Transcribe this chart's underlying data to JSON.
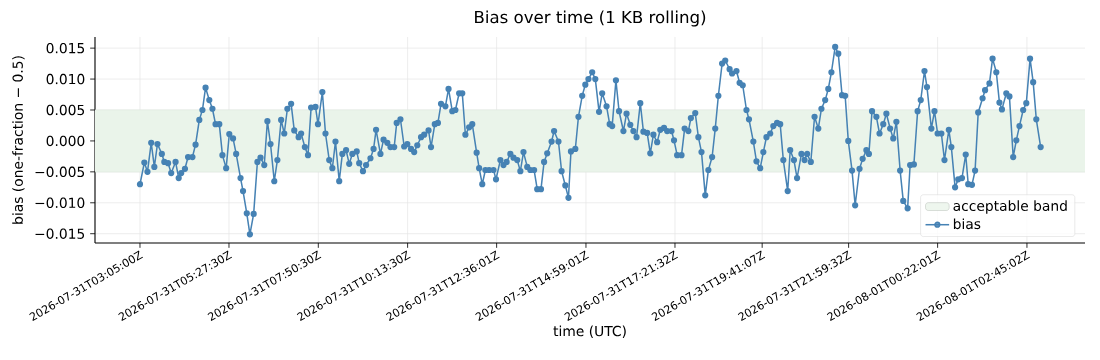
{
  "chart_data": {
    "type": "line",
    "title": "Bias over time (1 KB rolling)",
    "xlabel": "time (UTC)",
    "ylabel": "bias (one-fraction − 0.5)",
    "x": [
      "2026-07-31T03:05",
      "2026-07-31T03:12",
      "2026-07-31T03:17",
      "2026-07-31T03:23",
      "2026-07-31T03:28",
      "2026-07-31T03:33",
      "2026-07-31T03:40",
      "2026-07-31T03:44",
      "2026-07-31T03:50",
      "2026-07-31T03:55",
      "2026-07-31T04:02",
      "2026-07-31T04:07",
      "2026-07-31T04:11",
      "2026-07-31T04:17",
      "2026-07-31T04:22",
      "2026-07-31T04:29",
      "2026-07-31T04:34",
      "2026-07-31T04:40",
      "2026-07-31T04:45",
      "2026-07-31T04:50",
      "2026-07-31T04:56",
      "2026-07-31T05:01",
      "2026-07-31T05:06",
      "2026-07-31T05:12",
      "2026-07-31T05:17",
      "2026-07-31T05:23",
      "2026-07-31T05:28",
      "2026-07-31T05:34",
      "2026-07-31T05:39",
      "2026-07-31T05:46",
      "2026-07-31T05:50",
      "2026-07-31T05:56",
      "2026-07-31T06:01",
      "2026-07-31T06:07",
      "2026-07-31T06:13",
      "2026-07-31T06:18",
      "2026-07-31T06:24",
      "2026-07-31T06:29",
      "2026-07-31T06:34",
      "2026-07-31T06:40",
      "2026-07-31T06:45",
      "2026-07-31T06:51",
      "2026-07-31T06:56",
      "2026-07-31T07:01",
      "2026-07-31T07:07",
      "2026-07-31T07:12",
      "2026-07-31T07:19",
      "2026-07-31T07:23",
      "2026-07-31T07:29",
      "2026-07-31T07:34",
      "2026-07-31T07:39",
      "2026-07-31T07:46",
      "2026-07-31T07:50",
      "2026-07-31T07:57",
      "2026-07-31T08:02",
      "2026-07-31T08:08",
      "2026-07-31T08:13",
      "2026-07-31T08:18",
      "2026-07-31T08:24",
      "2026-07-31T08:29",
      "2026-07-31T08:35",
      "2026-07-31T08:40",
      "2026-07-31T08:45",
      "2026-07-31T08:52",
      "2026-07-31T08:56",
      "2026-07-31T09:02",
      "2026-07-31T09:07",
      "2026-07-31T09:14",
      "2026-07-31T09:19",
      "2026-07-31T09:23",
      "2026-07-31T09:30",
      "2026-07-31T09:35",
      "2026-07-31T09:41",
      "2026-07-31T09:46",
      "2026-07-31T09:52",
      "2026-07-31T09:56",
      "2026-07-31T10:02",
      "2026-07-31T10:08",
      "2026-07-31T10:13",
      "2026-07-31T10:19",
      "2026-07-31T10:24",
      "2026-07-31T10:29",
      "2026-07-31T10:35",
      "2026-07-31T10:40",
      "2026-07-31T10:47",
      "2026-07-31T10:51",
      "2026-07-31T10:57",
      "2026-07-31T11:02",
      "2026-07-31T11:07",
      "2026-07-31T11:14",
      "2026-07-31T11:19",
      "2026-07-31T11:25",
      "2026-07-31T11:30",
      "2026-07-31T11:36",
      "2026-07-31T11:41",
      "2026-07-31T11:46",
      "2026-07-31T11:52",
      "2026-07-31T11:57",
      "2026-07-31T12:04",
      "2026-07-31T12:08",
      "2026-07-31T12:13",
      "2026-07-31T12:18",
      "2026-07-31T12:24",
      "2026-07-31T12:31",
      "2026-07-31T12:35",
      "2026-07-31T12:42",
      "2026-07-31T12:47",
      "2026-07-31T12:52",
      "2026-07-31T12:58",
      "2026-07-31T13:03",
      "2026-07-31T13:09",
      "2026-07-31T13:14",
      "2026-07-31T13:19",
      "2026-07-31T13:25",
      "2026-07-31T13:30",
      "2026-07-31T13:36",
      "2026-07-31T13:41",
      "2026-07-31T13:47",
      "2026-07-31T13:52",
      "2026-07-31T13:57",
      "2026-07-31T14:04",
      "2026-07-31T14:08",
      "2026-07-31T14:15",
      "2026-07-31T14:20",
      "2026-07-31T14:26",
      "2026-07-31T14:31",
      "2026-07-31T14:35",
      "2026-07-31T14:42",
      "2026-07-31T14:47",
      "2026-07-31T14:53",
      "2026-07-31T14:58",
      "2026-07-31T15:03",
      "2026-07-31T15:09",
      "2026-07-31T15:14",
      "2026-07-31T15:20",
      "2026-07-31T15:25",
      "2026-07-31T15:32",
      "2026-07-31T15:37",
      "2026-07-31T15:41",
      "2026-07-31T15:47",
      "2026-07-31T15:52",
      "2026-07-31T15:59",
      "2026-07-31T16:04",
      "2026-07-31T16:10",
      "2026-07-31T16:15",
      "2026-07-31T16:20",
      "2026-07-31T16:26",
      "2026-07-31T16:31",
      "2026-07-31T16:37",
      "2026-07-31T16:42",
      "2026-07-31T16:47",
      "2026-07-31T16:53",
      "2026-07-31T16:58",
      "2026-07-31T17:04",
      "2026-07-31T17:09",
      "2026-07-31T17:16",
      "2026-07-31T17:20",
      "2026-07-31T17:25",
      "2026-07-31T17:32",
      "2026-07-31T17:37",
      "2026-07-31T17:43",
      "2026-07-31T17:47",
      "2026-07-31T17:54",
      "2026-07-31T17:59",
      "2026-07-31T18:04",
      "2026-07-31T18:10",
      "2026-07-31T18:15",
      "2026-07-31T18:21",
      "2026-07-31T18:26",
      "2026-07-31T18:31",
      "2026-07-31T18:37",
      "2026-07-31T18:42",
      "2026-07-31T18:49",
      "2026-07-31T18:53",
      "2026-07-31T19:00",
      "2026-07-31T19:05",
      "2026-07-31T19:10",
      "2026-07-31T19:16",
      "2026-07-31T19:20",
      "2026-07-31T19:27",
      "2026-07-31T19:32",
      "2026-07-31T19:38",
      "2026-07-31T19:43",
      "2026-07-31T19:48",
      "2026-07-31T19:54",
      "2026-07-31T19:59",
      "2026-07-31T20:05",
      "2026-07-31T20:10",
      "2026-07-31T20:15",
      "2026-07-31T20:22",
      "2026-07-31T20:26",
      "2026-07-31T20:32",
      "2026-07-31T20:37",
      "2026-07-31T20:44",
      "2026-07-31T20:49",
      "2026-07-31T20:53",
      "2026-07-31T20:59",
      "2026-07-31T21:05",
      "2026-07-31T21:11",
      "2026-07-31T21:16",
      "2026-07-31T21:22",
      "2026-07-31T21:27",
      "2026-07-31T21:32",
      "2026-07-31T21:38",
      "2026-07-31T21:43",
      "2026-07-31T21:49",
      "2026-07-31T21:54",
      "2026-07-31T21:59",
      "2026-07-31T22:05",
      "2026-07-31T22:10",
      "2026-07-31T22:17",
      "2026-07-31T22:22",
      "2026-07-31T22:28",
      "2026-07-31T22:32",
      "2026-07-31T22:37",
      "2026-07-31T22:44",
      "2026-07-31T22:49",
      "2026-07-31T22:55",
      "2026-07-31T23:00",
      "2026-07-31T23:06",
      "2026-07-31T23:11",
      "2026-07-31T23:16",
      "2026-07-31T23:22",
      "2026-07-31T23:27",
      "2026-07-31T23:34",
      "2026-07-31T23:38",
      "2026-07-31T23:44",
      "2026-07-31T23:50",
      "2026-07-31T23:55",
      "2026-08-01T00:01",
      "2026-08-01T00:05",
      "2026-08-01T00:12",
      "2026-08-01T00:17",
      "2026-08-01T00:22",
      "2026-08-01T00:28",
      "2026-08-01T00:33",
      "2026-08-01T00:40",
      "2026-08-01T00:44",
      "2026-08-01T00:50",
      "2026-08-01T00:55",
      "2026-08-01T01:01",
      "2026-08-01T01:07",
      "2026-08-01T01:11",
      "2026-08-01T01:17",
      "2026-08-01T01:22",
      "2026-08-01T01:27",
      "2026-08-01T01:34",
      "2026-08-01T01:38",
      "2026-08-01T01:45",
      "2026-08-01T01:50",
      "2026-08-01T01:56",
      "2026-08-01T02:01",
      "2026-08-01T02:05",
      "2026-08-01T02:12",
      "2026-08-01T02:17",
      "2026-08-01T02:23",
      "2026-08-01T02:28",
      "2026-08-01T02:33",
      "2026-08-01T02:39",
      "2026-08-01T02:44",
      "2026-08-01T02:50",
      "2026-08-01T02:55",
      "2026-08-01T03:00",
      "2026-08-01T03:07"
    ],
    "series": [
      {
        "name": "bias",
        "color": "#4682b4",
        "values": [
          -0.007,
          -0.0035,
          -0.005,
          -0.0003,
          -0.0042,
          -0.0005,
          -0.0021,
          -0.0034,
          -0.0036,
          -0.0052,
          -0.0034,
          -0.006,
          -0.0052,
          -0.0045,
          -0.0026,
          -0.0026,
          -0.0006,
          0.0034,
          0.005,
          0.0086,
          0.0066,
          0.0052,
          0.0027,
          0.0027,
          -0.0023,
          -0.0044,
          0.0011,
          0.0004,
          -0.0021,
          -0.006,
          -0.0081,
          -0.0117,
          -0.0151,
          -0.0118,
          -0.0034,
          -0.0027,
          -0.0039,
          0.0032,
          -0.0005,
          -0.0065,
          -0.0031,
          0.0034,
          0.0012,
          0.0052,
          0.006,
          0.0017,
          0.0006,
          0.0012,
          -0.001,
          -0.0023,
          0.0054,
          0.0055,
          0.0027,
          0.0079,
          0.0012,
          -0.0031,
          -0.0044,
          -0.0001,
          -0.0065,
          -0.0021,
          -0.0015,
          -0.0037,
          -0.0021,
          -0.0017,
          -0.0036,
          -0.0049,
          -0.0039,
          -0.0028,
          -0.0013,
          0.0018,
          -0.0021,
          0.0002,
          -0.0003,
          -0.001,
          -0.001,
          0.0029,
          0.0035,
          -0.0009,
          -0.0005,
          -0.0013,
          -0.0018,
          -0.0007,
          0.0006,
          0.001,
          0.0017,
          -0.001,
          0.0027,
          0.0029,
          0.006,
          0.0056,
          0.0084,
          0.0048,
          0.005,
          0.0077,
          0.0077,
          0.001,
          0.0022,
          0.0027,
          -0.0019,
          -0.0044,
          -0.007,
          -0.0047,
          -0.0047,
          -0.0047,
          -0.0062,
          -0.0031,
          -0.0039,
          -0.0034,
          -0.0021,
          -0.0027,
          -0.0031,
          -0.0049,
          -0.0018,
          -0.0042,
          -0.0047,
          -0.0047,
          -0.0078,
          -0.0078,
          -0.0034,
          -0.002,
          -0.0001,
          0.0016,
          -0.0001,
          -0.0049,
          -0.0072,
          -0.0092,
          -0.0017,
          -0.0013,
          0.0039,
          0.0073,
          0.0091,
          0.01,
          0.0111,
          0.01,
          0.0047,
          0.0077,
          0.0056,
          0.0027,
          0.0024,
          0.0098,
          0.0048,
          0.0016,
          0.0044,
          0.0026,
          0.0016,
          0.0006,
          0.0061,
          0.0015,
          0.0013,
          -0.002,
          0.001,
          -0.0002,
          0.0018,
          0.0021,
          0.0016,
          0.0016,
          0.0001,
          -0.0023,
          -0.0023,
          0.002,
          0.0016,
          0.0037,
          0.0045,
          0.0006,
          -0.0018,
          -0.0088,
          -0.0047,
          -0.0026,
          0.002,
          0.0073,
          0.0125,
          0.013,
          0.0116,
          0.0109,
          0.0113,
          0.0094,
          0.009,
          0.005,
          0.0035,
          -0.0001,
          -0.0033,
          -0.0044,
          -0.0018,
          0.0006,
          0.0012,
          0.0024,
          0.0029,
          0.0027,
          -0.0031,
          -0.0081,
          -0.0015,
          -0.0031,
          -0.006,
          -0.0021,
          -0.0031,
          -0.0021,
          -0.0034,
          0.0039,
          0.002,
          0.0052,
          0.0066,
          0.0084,
          0.0111,
          0.0152,
          0.0141,
          0.0074,
          0.0073,
          0.0,
          -0.0048,
          -0.0104,
          -0.0045,
          -0.0029,
          -0.0015,
          -0.0021,
          0.0048,
          0.0039,
          0.0012,
          0.0027,
          0.0044,
          0.002,
          0.0004,
          0.0031,
          -0.0048,
          -0.0097,
          -0.0109,
          -0.0039,
          -0.0038,
          0.0048,
          0.0066,
          0.0113,
          0.0087,
          0.002,
          0.0048,
          0.0012,
          0.0012,
          -0.0031,
          0.0018,
          -0.001,
          -0.0075,
          -0.0062,
          -0.006,
          -0.0022,
          -0.007,
          -0.0071,
          -0.0048,
          0.0046,
          0.0069,
          0.0082,
          0.0093,
          0.0133,
          0.0111,
          0.0062,
          0.0051,
          0.0077,
          0.0072,
          -0.0026,
          0.0001,
          0.0024,
          0.005,
          0.0061,
          0.0133,
          0.0095,
          0.0035,
          -0.001
        ]
      }
    ],
    "xlim": [
      "2026-07-31T01:53",
      "2026-08-01T04:18"
    ],
    "ylim": [
      -0.0165,
      0.0168
    ],
    "xticks": [
      {
        "value": "2026-07-31T03:05:00",
        "label": "2026-07-31T03:05:00Z"
      },
      {
        "value": "2026-07-31T05:27:30",
        "label": "2026-07-31T05:27:30Z"
      },
      {
        "value": "2026-07-31T07:50:30",
        "label": "2026-07-31T07:50:30Z"
      },
      {
        "value": "2026-07-31T10:13:30",
        "label": "2026-07-31T10:13:30Z"
      },
      {
        "value": "2026-07-31T12:36:01",
        "label": "2026-07-31T12:36:01Z"
      },
      {
        "value": "2026-07-31T14:59:01",
        "label": "2026-07-31T14:59:01Z"
      },
      {
        "value": "2026-07-31T17:21:32",
        "label": "2026-07-31T17:21:32Z"
      },
      {
        "value": "2026-07-31T19:41:07",
        "label": "2026-07-31T19:41:07Z"
      },
      {
        "value": "2026-07-31T21:59:32",
        "label": "2026-07-31T21:59:32Z"
      },
      {
        "value": "2026-08-01T00:22:01",
        "label": "2026-08-01T00:22:01Z"
      },
      {
        "value": "2026-08-01T02:45:02",
        "label": "2026-08-01T02:45:02Z"
      }
    ],
    "yticks": [
      {
        "value": -0.015,
        "label": "−0.015"
      },
      {
        "value": -0.01,
        "label": "−0.010"
      },
      {
        "value": -0.005,
        "label": "−0.005"
      },
      {
        "value": 0,
        "label": "0.000"
      },
      {
        "value": 0.005,
        "label": "0.005"
      },
      {
        "value": 0.01,
        "label": "0.010"
      },
      {
        "value": 0.015,
        "label": "0.015"
      }
    ],
    "bands": [
      {
        "axis": "y",
        "from": -0.005,
        "to": 0.005,
        "label": "acceptable band",
        "color": "#eaf4ea"
      }
    ],
    "grid": true,
    "legend": "bottom right",
    "marker": "circle",
    "line_style": "solid"
  }
}
